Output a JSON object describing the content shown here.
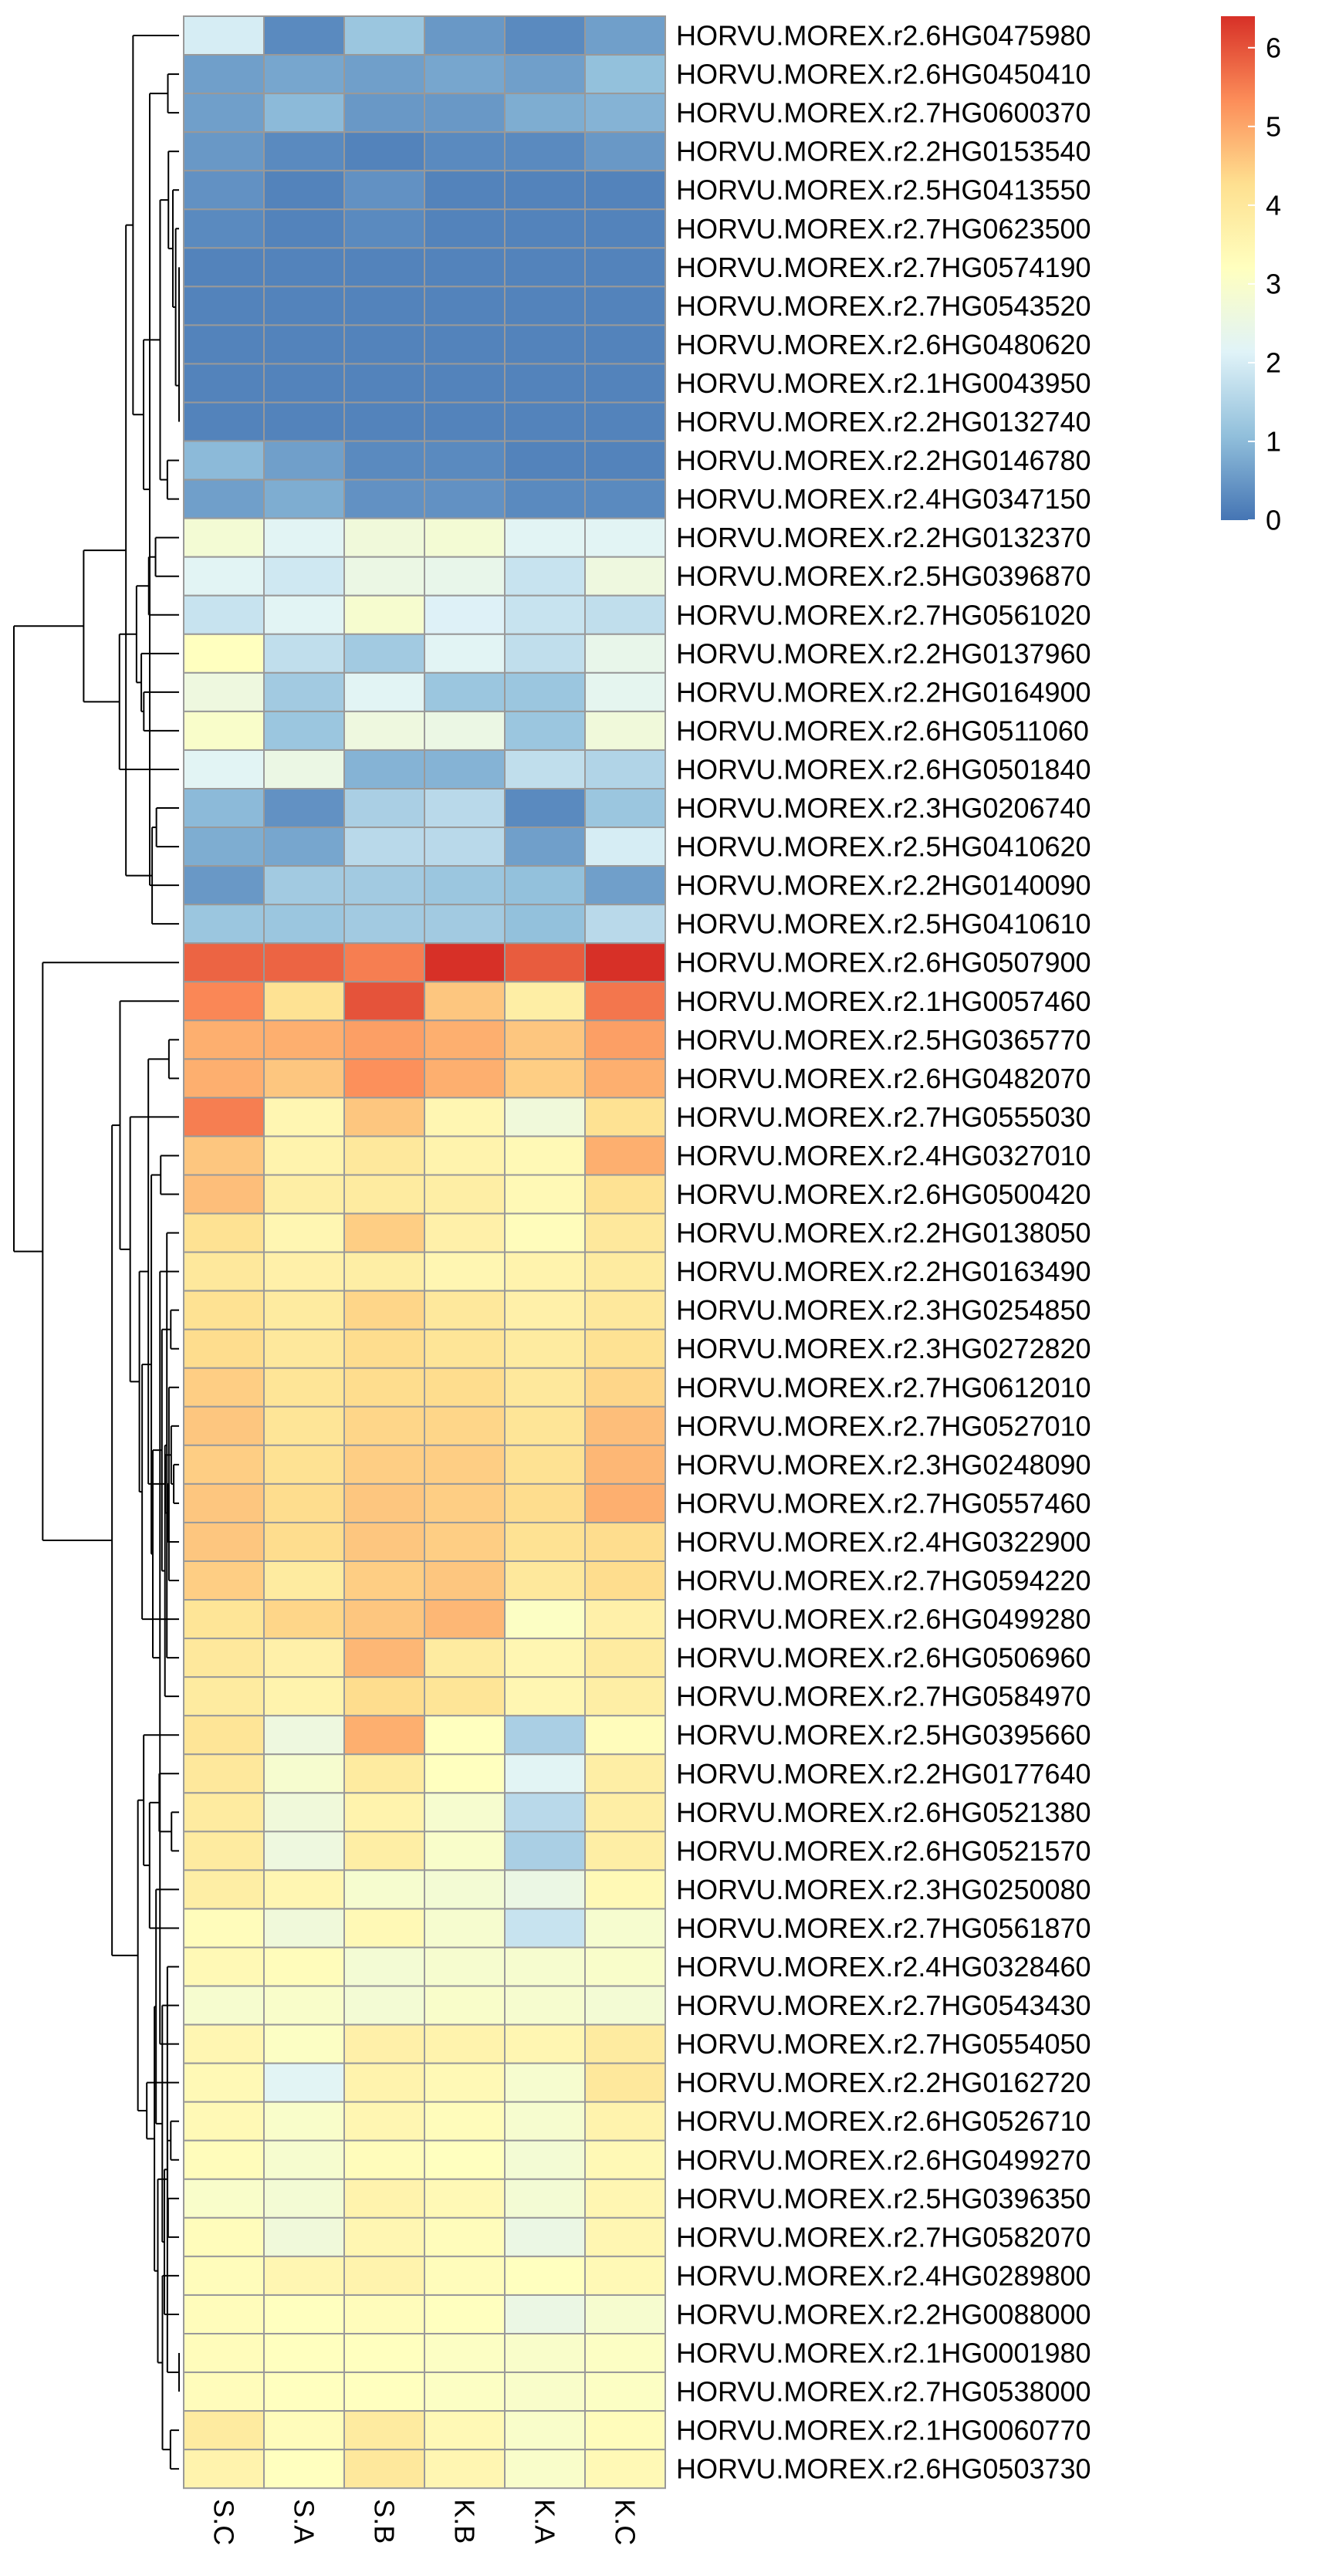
{
  "chart_data": {
    "type": "heatmap",
    "title": "",
    "columns": [
      "S.C",
      "S.A",
      "S.B",
      "K.B",
      "K.A",
      "K.C"
    ],
    "rows": [
      "HORVU.MOREX.r2.6HG0475980",
      "HORVU.MOREX.r2.6HG0450410",
      "HORVU.MOREX.r2.7HG0600370",
      "HORVU.MOREX.r2.2HG0153540",
      "HORVU.MOREX.r2.5HG0413550",
      "HORVU.MOREX.r2.7HG0623500",
      "HORVU.MOREX.r2.7HG0574190",
      "HORVU.MOREX.r2.7HG0543520",
      "HORVU.MOREX.r2.6HG0480620",
      "HORVU.MOREX.r2.1HG0043950",
      "HORVU.MOREX.r2.2HG0132740",
      "HORVU.MOREX.r2.2HG0146780",
      "HORVU.MOREX.r2.4HG0347150",
      "HORVU.MOREX.r2.2HG0132370",
      "HORVU.MOREX.r2.5HG0396870",
      "HORVU.MOREX.r2.7HG0561020",
      "HORVU.MOREX.r2.2HG0137960",
      "HORVU.MOREX.r2.2HG0164900",
      "HORVU.MOREX.r2.6HG0511060",
      "HORVU.MOREX.r2.6HG0501840",
      "HORVU.MOREX.r2.3HG0206740",
      "HORVU.MOREX.r2.5HG0410620",
      "HORVU.MOREX.r2.2HG0140090",
      "HORVU.MOREX.r2.5HG0410610",
      "HORVU.MOREX.r2.6HG0507900",
      "HORVU.MOREX.r2.1HG0057460",
      "HORVU.MOREX.r2.5HG0365770",
      "HORVU.MOREX.r2.6HG0482070",
      "HORVU.MOREX.r2.7HG0555030",
      "HORVU.MOREX.r2.4HG0327010",
      "HORVU.MOREX.r2.6HG0500420",
      "HORVU.MOREX.r2.2HG0138050",
      "HORVU.MOREX.r2.2HG0163490",
      "HORVU.MOREX.r2.3HG0254850",
      "HORVU.MOREX.r2.3HG0272820",
      "HORVU.MOREX.r2.7HG0612010",
      "HORVU.MOREX.r2.7HG0527010",
      "HORVU.MOREX.r2.3HG0248090",
      "HORVU.MOREX.r2.7HG0557460",
      "HORVU.MOREX.r2.4HG0322900",
      "HORVU.MOREX.r2.7HG0594220",
      "HORVU.MOREX.r2.6HG0499280",
      "HORVU.MOREX.r2.6HG0506960",
      "HORVU.MOREX.r2.7HG0584970",
      "HORVU.MOREX.r2.5HG0395660",
      "HORVU.MOREX.r2.2HG0177640",
      "HORVU.MOREX.r2.6HG0521380",
      "HORVU.MOREX.r2.6HG0521570",
      "HORVU.MOREX.r2.3HG0250080",
      "HORVU.MOREX.r2.7HG0561870",
      "HORVU.MOREX.r2.4HG0328460",
      "HORVU.MOREX.r2.7HG0543430",
      "HORVU.MOREX.r2.7HG0554050",
      "HORVU.MOREX.r2.2HG0162720",
      "HORVU.MOREX.r2.6HG0526710",
      "HORVU.MOREX.r2.6HG0499270",
      "HORVU.MOREX.r2.5HG0396350",
      "HORVU.MOREX.r2.7HG0582070",
      "HORVU.MOREX.r2.4HG0289800",
      "HORVU.MOREX.r2.2HG0088000",
      "HORVU.MOREX.r2.1HG0001980",
      "HORVU.MOREX.r2.7HG0538000",
      "HORVU.MOREX.r2.1HG0060770",
      "HORVU.MOREX.r2.6HG0503730"
    ],
    "values": [
      [
        2.0,
        0.3,
        1.2,
        0.5,
        0.3,
        0.6
      ],
      [
        0.6,
        0.7,
        0.6,
        0.7,
        0.6,
        1.1
      ],
      [
        0.6,
        1.0,
        0.5,
        0.5,
        0.8,
        0.9
      ],
      [
        0.5,
        0.3,
        0.2,
        0.3,
        0.3,
        0.5
      ],
      [
        0.4,
        0.2,
        0.4,
        0.2,
        0.2,
        0.2
      ],
      [
        0.3,
        0.2,
        0.3,
        0.2,
        0.2,
        0.2
      ],
      [
        0.2,
        0.2,
        0.2,
        0.2,
        0.2,
        0.2
      ],
      [
        0.2,
        0.2,
        0.2,
        0.2,
        0.2,
        0.2
      ],
      [
        0.2,
        0.2,
        0.2,
        0.2,
        0.2,
        0.2
      ],
      [
        0.2,
        0.2,
        0.2,
        0.2,
        0.2,
        0.2
      ],
      [
        0.2,
        0.2,
        0.2,
        0.2,
        0.2,
        0.2
      ],
      [
        1.0,
        0.6,
        0.3,
        0.3,
        0.2,
        0.2
      ],
      [
        0.6,
        0.8,
        0.4,
        0.4,
        0.3,
        0.3
      ],
      [
        2.8,
        2.2,
        2.7,
        2.8,
        2.2,
        2.2
      ],
      [
        2.2,
        1.9,
        2.5,
        2.4,
        1.8,
        2.6
      ],
      [
        1.8,
        2.2,
        2.9,
        2.1,
        1.8,
        1.7
      ],
      [
        3.2,
        1.7,
        1.3,
        2.2,
        1.7,
        2.4
      ],
      [
        2.6,
        1.3,
        2.2,
        1.2,
        1.2,
        2.3
      ],
      [
        3.0,
        1.2,
        2.6,
        2.5,
        1.2,
        2.7
      ],
      [
        2.2,
        2.5,
        0.9,
        0.9,
        1.7,
        1.5
      ],
      [
        1.0,
        0.4,
        1.4,
        1.6,
        0.3,
        1.2
      ],
      [
        0.8,
        0.7,
        1.6,
        1.6,
        0.6,
        2.0
      ],
      [
        0.5,
        1.3,
        1.3,
        1.2,
        1.1,
        0.6
      ],
      [
        1.2,
        1.2,
        1.3,
        1.3,
        1.1,
        1.6
      ],
      [
        5.8,
        5.8,
        5.5,
        6.4,
        5.9,
        6.4
      ],
      [
        5.4,
        4.2,
        6.0,
        4.6,
        3.8,
        5.6
      ],
      [
        4.9,
        4.9,
        5.1,
        4.9,
        4.6,
        5.1
      ],
      [
        4.9,
        4.6,
        5.3,
        4.9,
        4.5,
        4.9
      ],
      [
        5.5,
        3.5,
        4.6,
        3.5,
        2.7,
        4.2
      ],
      [
        4.6,
        3.6,
        4.0,
        3.6,
        3.4,
        4.9
      ],
      [
        4.7,
        3.8,
        3.9,
        3.8,
        3.4,
        4.2
      ],
      [
        4.2,
        3.5,
        4.5,
        3.7,
        3.3,
        4.0
      ],
      [
        4.0,
        3.7,
        3.8,
        3.5,
        3.6,
        3.9
      ],
      [
        4.2,
        3.9,
        4.4,
        4.0,
        3.7,
        4.0
      ],
      [
        4.3,
        4.0,
        4.3,
        4.1,
        3.9,
        4.2
      ],
      [
        4.5,
        4.1,
        4.3,
        4.3,
        4.0,
        4.4
      ],
      [
        4.6,
        4.1,
        4.4,
        4.4,
        4.1,
        4.7
      ],
      [
        4.5,
        4.2,
        4.5,
        4.5,
        4.2,
        4.8
      ],
      [
        4.6,
        4.3,
        4.6,
        4.5,
        4.3,
        4.9
      ],
      [
        4.6,
        4.3,
        4.6,
        4.5,
        4.2,
        4.3
      ],
      [
        4.5,
        3.9,
        4.5,
        4.6,
        4.0,
        4.3
      ],
      [
        4.1,
        4.4,
        4.6,
        4.8,
        3.1,
        3.7
      ],
      [
        4.0,
        3.7,
        4.8,
        3.9,
        3.5,
        3.9
      ],
      [
        3.9,
        3.6,
        4.3,
        4.1,
        3.5,
        3.8
      ],
      [
        4.1,
        2.6,
        4.9,
        3.2,
        1.4,
        3.3
      ],
      [
        4.0,
        2.9,
        3.9,
        3.2,
        2.2,
        3.8
      ],
      [
        3.9,
        2.7,
        3.6,
        2.9,
        1.6,
        3.8
      ],
      [
        3.9,
        2.6,
        3.8,
        3.0,
        1.4,
        3.8
      ],
      [
        3.8,
        3.5,
        2.9,
        2.8,
        2.5,
        3.4
      ],
      [
        3.3,
        2.7,
        3.4,
        2.9,
        1.8,
        2.9
      ],
      [
        3.4,
        3.3,
        2.8,
        2.9,
        2.9,
        3.0
      ],
      [
        2.9,
        3.0,
        2.8,
        3.0,
        2.9,
        2.8
      ],
      [
        3.5,
        3.1,
        3.7,
        3.6,
        3.5,
        3.9
      ],
      [
        3.4,
        2.2,
        3.6,
        3.4,
        2.9,
        4.0
      ],
      [
        3.4,
        3.0,
        3.5,
        3.3,
        2.9,
        3.6
      ],
      [
        3.3,
        2.9,
        3.3,
        3.2,
        2.8,
        3.4
      ],
      [
        3.0,
        2.8,
        3.6,
        3.4,
        2.8,
        3.5
      ],
      [
        3.3,
        2.7,
        3.5,
        3.3,
        2.5,
        3.5
      ],
      [
        3.3,
        3.5,
        3.6,
        3.3,
        3.2,
        3.4
      ],
      [
        3.3,
        3.2,
        3.3,
        3.2,
        2.5,
        2.9
      ],
      [
        3.3,
        3.2,
        3.2,
        3.1,
        3.0,
        3.1
      ],
      [
        3.3,
        3.2,
        3.2,
        3.1,
        3.0,
        3.1
      ],
      [
        3.9,
        3.3,
        3.9,
        3.4,
        3.0,
        3.3
      ],
      [
        3.6,
        3.2,
        4.0,
        3.5,
        3.0,
        3.4
      ]
    ],
    "legend": {
      "range": [
        0,
        6.4
      ],
      "ticks": [
        0,
        1,
        2,
        3,
        4,
        5,
        6
      ],
      "tick_labels": [
        "0",
        "1",
        "2",
        "3",
        "4",
        "5",
        "6"
      ],
      "placement": "top-right",
      "colors": [
        "#4575b4",
        "#91bfdb",
        "#e0f3f8",
        "#ffffbf",
        "#fee090",
        "#fc8d59",
        "#d73027"
      ]
    },
    "cell_border_color": "#999999",
    "row_dendrogram": true,
    "column_dendrogram": false,
    "grid": false
  }
}
